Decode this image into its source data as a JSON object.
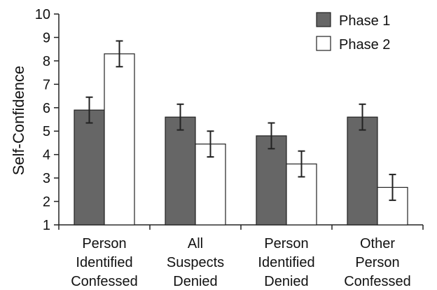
{
  "chart_data": {
    "type": "bar",
    "title": "",
    "xlabel": "",
    "ylabel": "Self-Confidence",
    "ylim": [
      1,
      10
    ],
    "yticks": [
      "1",
      "2",
      "3",
      "4",
      "5",
      "6",
      "7",
      "8",
      "9",
      "10"
    ],
    "categories": [
      [
        "Person",
        "Identified",
        "Confessed"
      ],
      [
        "All",
        "Suspects",
        "Denied"
      ],
      [
        "Person",
        "Identified",
        "Denied"
      ],
      [
        "Other",
        "Person",
        "Confessed"
      ]
    ],
    "series": [
      {
        "name": "Phase 1",
        "color": "#666666",
        "values": [
          5.9,
          5.6,
          4.8,
          5.6
        ],
        "errors": [
          0.55,
          0.55,
          0.55,
          0.55
        ]
      },
      {
        "name": "Phase 2",
        "color": "#ffffff",
        "values": [
          8.3,
          4.45,
          3.6,
          2.6
        ],
        "errors": [
          0.55,
          0.55,
          0.55,
          0.55
        ]
      }
    ],
    "legend_position": "top-right",
    "grid": false
  }
}
